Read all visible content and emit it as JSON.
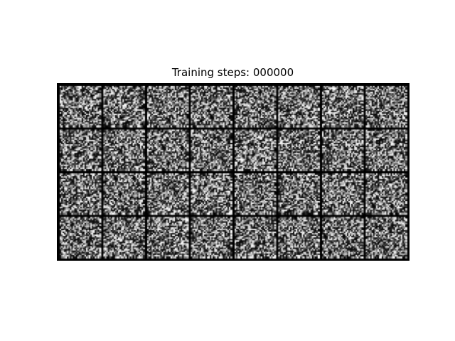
{
  "figure": {
    "title": "Training steps: 000000"
  },
  "sample_grid": {
    "rows": 4,
    "cols": 8,
    "tile_pixels": 28,
    "content": "random noise samples (grayscale)",
    "background_color": "#ffffff",
    "border_color": "#000000"
  }
}
